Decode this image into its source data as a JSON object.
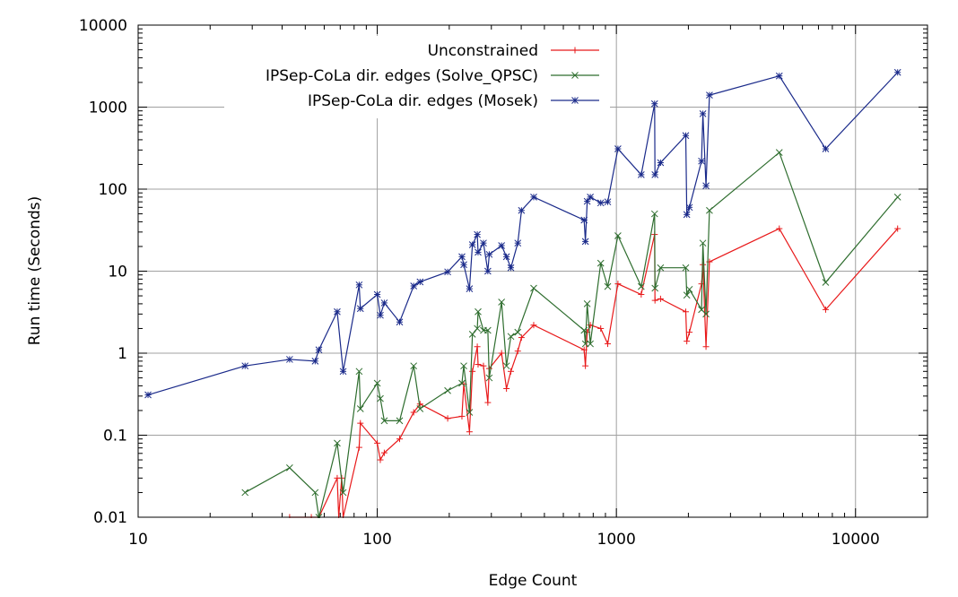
{
  "chart_data": {
    "type": "line",
    "xlabel": "Edge Count",
    "ylabel": "Run time (Seconds)",
    "x_scale": "log",
    "y_scale": "log",
    "xlim": [
      10,
      20000
    ],
    "ylim": [
      0.01,
      10000
    ],
    "x_ticks": [
      {
        "value": 10,
        "label": "10"
      },
      {
        "value": 100,
        "label": "100"
      },
      {
        "value": 1000,
        "label": "1000"
      },
      {
        "value": 10000,
        "label": "10000"
      }
    ],
    "y_ticks": [
      {
        "value": 0.01,
        "label": "0.01"
      },
      {
        "value": 0.1,
        "label": "0.1"
      },
      {
        "value": 1,
        "label": "1"
      },
      {
        "value": 10,
        "label": "10"
      },
      {
        "value": 100,
        "label": "100"
      },
      {
        "value": 1000,
        "label": "1000"
      },
      {
        "value": 10000,
        "label": "10000"
      }
    ],
    "grid": true,
    "legend_position": "top-right",
    "series": [
      {
        "name": "Unconstrained",
        "color": "#e8191a",
        "marker": "plus",
        "points": [
          [
            43,
            0.01
          ],
          [
            53,
            0.01
          ],
          [
            57,
            0.01
          ],
          [
            68,
            0.03
          ],
          [
            69,
            0.01
          ],
          [
            71,
            0.03
          ],
          [
            72,
            0.01
          ],
          [
            84,
            0.071
          ],
          [
            85,
            0.14
          ],
          [
            100,
            0.08
          ],
          [
            103,
            0.05
          ],
          [
            107,
            0.061
          ],
          [
            124,
            0.09
          ],
          [
            142,
            0.19
          ],
          [
            151,
            0.24
          ],
          [
            197,
            0.16
          ],
          [
            226,
            0.17
          ],
          [
            230,
            0.42
          ],
          [
            243,
            0.11
          ],
          [
            250,
            0.6
          ],
          [
            262,
            1.2
          ],
          [
            264,
            0.73
          ],
          [
            278,
            0.7
          ],
          [
            290,
            0.25
          ],
          [
            294,
            0.65
          ],
          [
            331,
            1.0
          ],
          [
            347,
            0.37
          ],
          [
            362,
            0.6
          ],
          [
            387,
            1.06
          ],
          [
            401,
            1.55
          ],
          [
            451,
            2.2
          ],
          [
            733,
            1.1
          ],
          [
            742,
            0.7
          ],
          [
            755,
            1.8
          ],
          [
            778,
            2.2
          ],
          [
            860,
            2.0
          ],
          [
            920,
            1.3
          ],
          [
            1015,
            7.0
          ],
          [
            1270,
            5.2
          ],
          [
            1445,
            28
          ],
          [
            1450,
            4.4
          ],
          [
            1530,
            4.6
          ],
          [
            1950,
            3.2
          ],
          [
            1970,
            1.4
          ],
          [
            2020,
            1.8
          ],
          [
            2270,
            7.0
          ],
          [
            2300,
            12
          ],
          [
            2370,
            1.2
          ],
          [
            2450,
            13
          ],
          [
            4800,
            33
          ],
          [
            7500,
            3.4
          ],
          [
            15000,
            33
          ]
        ]
      },
      {
        "name": "IPSep-CoLa dir. edges (Solve_QPSC)",
        "color": "#2e6d2e",
        "marker": "cross",
        "points": [
          [
            28,
            0.02
          ],
          [
            43,
            0.04
          ],
          [
            55,
            0.02
          ],
          [
            57,
            0.01
          ],
          [
            68,
            0.08
          ],
          [
            72,
            0.02
          ],
          [
            84,
            0.6
          ],
          [
            85,
            0.21
          ],
          [
            100,
            0.43
          ],
          [
            103,
            0.28
          ],
          [
            107,
            0.15
          ],
          [
            124,
            0.15
          ],
          [
            142,
            0.7
          ],
          [
            151,
            0.21
          ],
          [
            197,
            0.35
          ],
          [
            226,
            0.43
          ],
          [
            230,
            0.7
          ],
          [
            243,
            0.19
          ],
          [
            250,
            1.7
          ],
          [
            262,
            2.0
          ],
          [
            264,
            3.2
          ],
          [
            278,
            1.9
          ],
          [
            290,
            1.9
          ],
          [
            294,
            0.5
          ],
          [
            331,
            4.2
          ],
          [
            347,
            0.7
          ],
          [
            362,
            1.6
          ],
          [
            387,
            1.8
          ],
          [
            451,
            6.2
          ],
          [
            733,
            1.9
          ],
          [
            742,
            1.3
          ],
          [
            755,
            4.0
          ],
          [
            778,
            1.3
          ],
          [
            860,
            12.5
          ],
          [
            920,
            6.5
          ],
          [
            1015,
            27
          ],
          [
            1270,
            6.5
          ],
          [
            1445,
            50
          ],
          [
            1450,
            6.2
          ],
          [
            1530,
            11
          ],
          [
            1950,
            11
          ],
          [
            1970,
            5.1
          ],
          [
            2020,
            6.0
          ],
          [
            2270,
            3.4
          ],
          [
            2300,
            22
          ],
          [
            2370,
            3.0
          ],
          [
            2450,
            55
          ],
          [
            4800,
            280
          ],
          [
            7500,
            7.3
          ],
          [
            15000,
            80
          ]
        ]
      },
      {
        "name": "IPSep-CoLa dir. edges (Mosek)",
        "color": "#1a2a8a",
        "marker": "star",
        "points": [
          [
            11,
            0.31
          ],
          [
            28,
            0.7
          ],
          [
            43,
            0.84
          ],
          [
            55,
            0.8
          ],
          [
            57,
            1.1
          ],
          [
            68,
            3.2
          ],
          [
            72,
            0.6
          ],
          [
            84,
            6.8
          ],
          [
            85,
            3.5
          ],
          [
            100,
            5.2
          ],
          [
            103,
            2.9
          ],
          [
            107,
            4.1
          ],
          [
            124,
            2.4
          ],
          [
            142,
            6.6
          ],
          [
            151,
            7.4
          ],
          [
            197,
            9.8
          ],
          [
            226,
            15
          ],
          [
            230,
            12
          ],
          [
            243,
            6.1
          ],
          [
            250,
            21
          ],
          [
            262,
            28
          ],
          [
            264,
            17
          ],
          [
            278,
            22
          ],
          [
            290,
            10
          ],
          [
            294,
            16
          ],
          [
            331,
            20.5
          ],
          [
            347,
            15
          ],
          [
            362,
            11
          ],
          [
            387,
            22
          ],
          [
            401,
            55
          ],
          [
            451,
            80
          ],
          [
            733,
            42
          ],
          [
            742,
            23
          ],
          [
            755,
            71
          ],
          [
            778,
            80
          ],
          [
            860,
            68
          ],
          [
            920,
            70
          ],
          [
            1015,
            310
          ],
          [
            1270,
            150
          ],
          [
            1445,
            1100
          ],
          [
            1450,
            150
          ],
          [
            1530,
            210
          ],
          [
            1950,
            450
          ],
          [
            1970,
            49
          ],
          [
            2020,
            60
          ],
          [
            2270,
            220
          ],
          [
            2300,
            830
          ],
          [
            2370,
            110
          ],
          [
            2450,
            1400
          ],
          [
            4800,
            2400
          ],
          [
            7500,
            310
          ],
          [
            15000,
            2650
          ]
        ]
      }
    ]
  }
}
